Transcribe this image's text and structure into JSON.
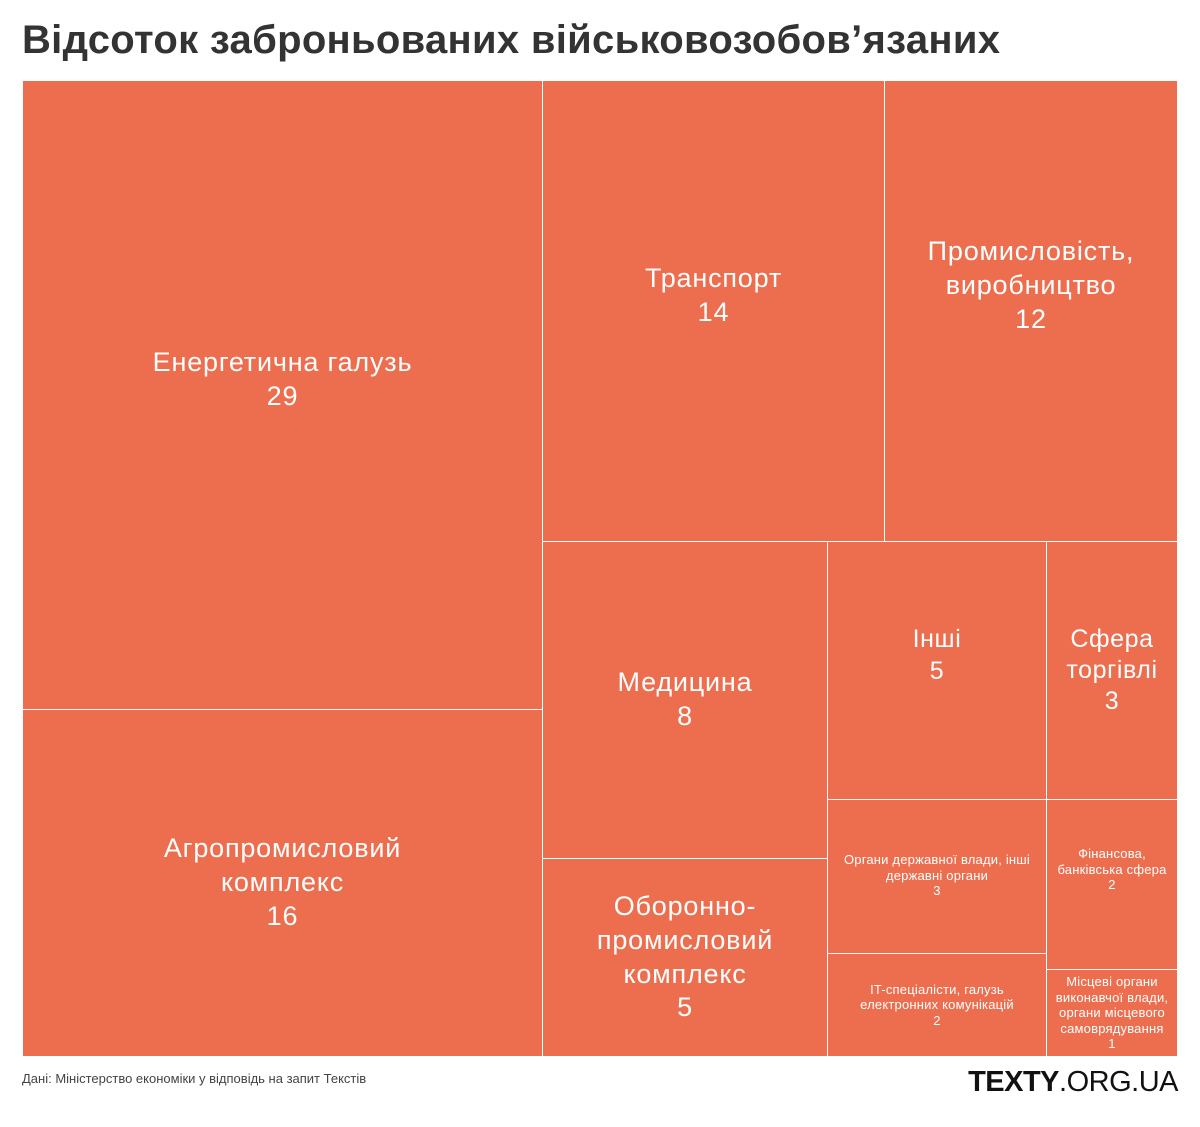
{
  "title": "Відсоток заброньованих військовозобов’язаних",
  "source": "Дані: Міністерство економіки у відповідь на запит Текстів",
  "logo": {
    "bold": "TEXTY",
    "rest": ".ORG.UA"
  },
  "colors": {
    "fill": "#ec6e4e",
    "border": "#ffffff",
    "text": "#ffffff"
  },
  "chart_data": {
    "type": "treemap",
    "title": "Відсоток заброньованих військовозобов’язаних",
    "unit": "%",
    "items": [
      {
        "label": "Енергетична галузь",
        "value": 29
      },
      {
        "label": "Агропромисловий комплекс",
        "value": 16
      },
      {
        "label": "Транспорт",
        "value": 14
      },
      {
        "label": "Промисловість, виробництво",
        "value": 12
      },
      {
        "label": "Медицина",
        "value": 8
      },
      {
        "label": "Оборонно-промисловий комплекс",
        "value": 5
      },
      {
        "label": "Інші",
        "value": 5
      },
      {
        "label": "Сфера торгівлі",
        "value": 3
      },
      {
        "label": "Органи державної влади, інші державні органи",
        "value": 3
      },
      {
        "label": "IT-спеціалісти, галузь електронних комунікацій",
        "value": 2
      },
      {
        "label": "Фінансова, банківська сфера",
        "value": 2
      },
      {
        "label": "Місцеві органи виконавчої влади, органи місцевого самоврядування",
        "value": 1
      }
    ]
  }
}
